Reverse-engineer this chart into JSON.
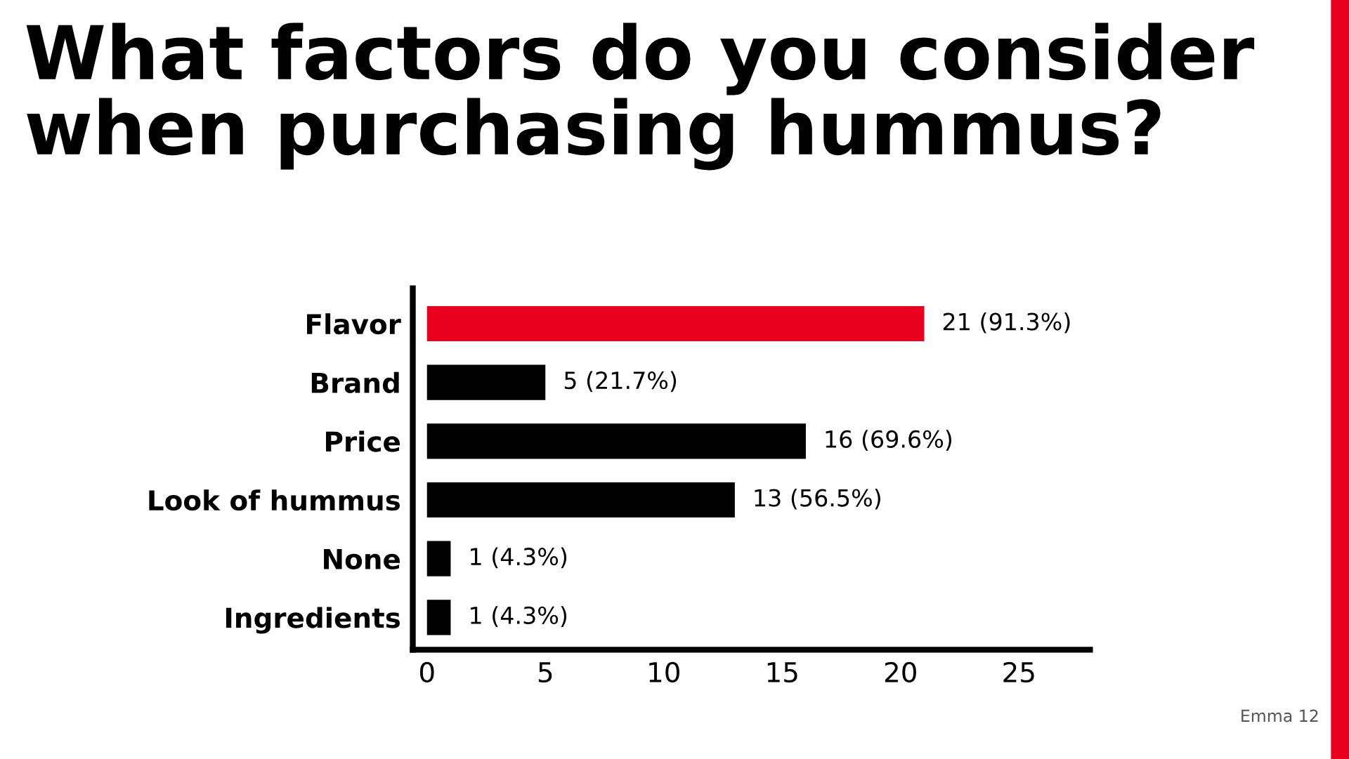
{
  "chart_data": {
    "type": "bar",
    "orientation": "horizontal",
    "title": "What factors do you consider\nwhen purchasing hummus?",
    "categories": [
      "Flavor",
      "Brand",
      "Price",
      "Look of hummus",
      "None",
      "Ingredients"
    ],
    "values": [
      21,
      5,
      16,
      13,
      1,
      1
    ],
    "colors": [
      "#e8001c",
      "#000000",
      "#000000",
      "#000000",
      "#000000",
      "#000000"
    ],
    "value_labels": [
      "21 (91.3%)",
      "5 (21.7%)",
      "16 (69.6%)",
      "13 (56.5%)",
      "1 (4.3%)",
      "1 (4.3%)"
    ],
    "xlim": [
      -0.6,
      28
    ],
    "xticks": [
      0,
      5,
      10,
      15,
      20,
      25
    ],
    "grid": false,
    "legend": false,
    "annotations": [
      "Emma 12"
    ]
  }
}
